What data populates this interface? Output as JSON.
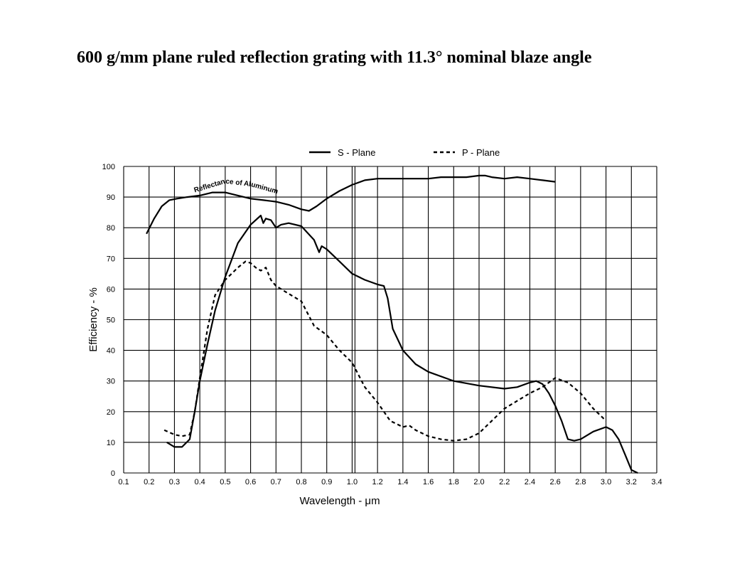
{
  "page_title": "600 g/mm plane ruled reflection grating with 11.3° nominal blaze angle",
  "chart_data": {
    "type": "line",
    "xlabel": "Wavelength - μm",
    "ylabel": "Efficiency - %",
    "x_ticks": [
      "0.1",
      "0.2",
      "0.3",
      "0.4",
      "0.5",
      "0.6",
      "0.7",
      "0.8",
      "0.9",
      "1.0",
      "1.2",
      "1.4",
      "1.6",
      "1.8",
      "2.0",
      "2.2",
      "2.4",
      "2.6",
      "2.8",
      "3.0",
      "3.2",
      "3.4"
    ],
    "y_ticks": [
      "0",
      "10",
      "20",
      "30",
      "40",
      "50",
      "60",
      "70",
      "80",
      "90",
      "100"
    ],
    "ylim": [
      0,
      100
    ],
    "grid": true,
    "legend_position": "top",
    "legend": [
      {
        "label": "S - Plane",
        "style": "solid"
      },
      {
        "label": "P - Plane",
        "style": "dashed"
      }
    ],
    "annotation": "Reflectance of Aluminum",
    "series": [
      {
        "name": "S - Plane",
        "style": "solid",
        "x": [
          0.27,
          0.3,
          0.33,
          0.36,
          0.38,
          0.4,
          0.43,
          0.46,
          0.5,
          0.55,
          0.6,
          0.64,
          0.65,
          0.66,
          0.68,
          0.7,
          0.72,
          0.75,
          0.8,
          0.85,
          0.87,
          0.88,
          0.9,
          0.95,
          1.0,
          1.1,
          1.2,
          1.25,
          1.28,
          1.32,
          1.4,
          1.5,
          1.6,
          1.8,
          2.0,
          2.2,
          2.3,
          2.4,
          2.45,
          2.5,
          2.55,
          2.6,
          2.65,
          2.7,
          2.75,
          2.8,
          2.9,
          3.0,
          3.05,
          3.1,
          3.15,
          3.2,
          3.25
        ],
        "y": [
          10,
          8.5,
          8.5,
          11,
          20,
          30,
          42,
          53,
          64,
          75,
          81,
          84,
          81.5,
          83,
          82.5,
          80,
          81,
          81.5,
          80.5,
          76,
          72,
          74,
          73,
          69,
          65,
          63,
          61.5,
          61,
          57,
          47,
          40,
          35.5,
          33,
          30,
          28.5,
          27.5,
          28,
          29.5,
          30,
          29,
          26,
          22,
          17,
          11,
          10.5,
          11,
          13.5,
          15,
          14,
          11,
          6,
          1,
          0
        ]
      },
      {
        "name": "P - Plane",
        "style": "dashed",
        "x": [
          0.26,
          0.3,
          0.33,
          0.36,
          0.38,
          0.4,
          0.43,
          0.46,
          0.5,
          0.55,
          0.58,
          0.6,
          0.62,
          0.64,
          0.66,
          0.68,
          0.7,
          0.75,
          0.8,
          0.85,
          0.9,
          0.95,
          1.0,
          1.1,
          1.2,
          1.3,
          1.4,
          1.45,
          1.5,
          1.6,
          1.7,
          1.8,
          1.9,
          2.0,
          2.1,
          2.2,
          2.4,
          2.5,
          2.6,
          2.7,
          2.8,
          2.9,
          3.0
        ],
        "y": [
          14,
          12.5,
          12,
          12.5,
          20,
          31,
          47,
          58,
          63,
          67,
          69,
          68.5,
          67,
          66,
          67,
          63,
          61,
          58.5,
          56,
          48,
          45,
          40,
          36,
          28,
          23,
          17,
          15,
          15.5,
          14,
          12,
          11,
          10.5,
          11,
          13,
          17,
          21,
          26,
          28,
          31,
          29.5,
          26,
          21,
          17
        ]
      },
      {
        "name": "Reflectance of Aluminum",
        "style": "solid",
        "x": [
          0.19,
          0.22,
          0.25,
          0.28,
          0.31,
          0.35,
          0.4,
          0.45,
          0.5,
          0.55,
          0.6,
          0.65,
          0.7,
          0.75,
          0.8,
          0.83,
          0.86,
          0.9,
          0.95,
          1.0,
          1.1,
          1.2,
          1.3,
          1.4,
          1.5,
          1.6,
          1.7,
          1.8,
          1.9,
          2.0,
          2.05,
          2.1,
          2.2,
          2.3,
          2.4,
          2.5,
          2.6
        ],
        "y": [
          78,
          83,
          87,
          89,
          89.5,
          90,
          90.5,
          91.5,
          91.5,
          90.5,
          89.5,
          89,
          88.5,
          87.5,
          86,
          85.5,
          87,
          89.5,
          92,
          94,
          95.5,
          96,
          96,
          96,
          96,
          96,
          96.5,
          96.5,
          96.5,
          97,
          97,
          96.5,
          96,
          96.5,
          96,
          95.5,
          95
        ]
      }
    ]
  }
}
